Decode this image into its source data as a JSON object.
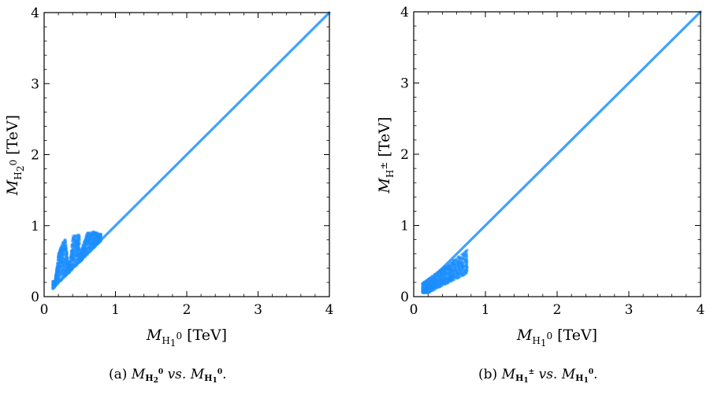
{
  "chart_data": [
    {
      "type": "scatter",
      "id": "a",
      "xlabel": "M_{H_1^0} [TeV]",
      "ylabel": "M_{H_2^0} [TeV]",
      "xlim": [
        0,
        4
      ],
      "ylim": [
        0,
        4
      ],
      "xticks": [
        "0",
        "1",
        "2",
        "3",
        "4"
      ],
      "yticks": [
        "0",
        "1",
        "2",
        "3",
        "4"
      ],
      "grid": false,
      "color": "#1e90ff",
      "diagonal": {
        "from": [
          0.12,
          0.12
        ],
        "to": [
          4.0,
          4.0
        ]
      },
      "cloud": [
        {
          "x": 0.15,
          "y": 0.22
        },
        {
          "x": 0.18,
          "y": 0.45
        },
        {
          "x": 0.2,
          "y": 0.62
        },
        {
          "x": 0.25,
          "y": 0.75
        },
        {
          "x": 0.3,
          "y": 0.82
        },
        {
          "x": 0.4,
          "y": 0.86
        },
        {
          "x": 0.5,
          "y": 0.88
        },
        {
          "x": 0.6,
          "y": 0.9
        },
        {
          "x": 0.7,
          "y": 0.92
        },
        {
          "x": 0.8,
          "y": 0.88
        },
        {
          "x": 0.35,
          "y": 0.4
        },
        {
          "x": 0.5,
          "y": 0.6
        }
      ],
      "caption": {
        "prefix": "(a) ",
        "m1": "M",
        "m1_sub": "H",
        "m1_subsub": "2",
        "m1_sup": "0",
        "vs": " vs. ",
        "m2": "M",
        "m2_sub": "H",
        "m2_subsub": "1",
        "m2_sup": "0",
        "suffix": "."
      }
    },
    {
      "type": "scatter",
      "id": "b",
      "xlabel": "M_{H_1^0} [TeV]",
      "ylabel": "M_{H^±} [TeV]",
      "xlim": [
        0,
        4
      ],
      "ylim": [
        0,
        4
      ],
      "xticks": [
        "0",
        "1",
        "2",
        "3",
        "4"
      ],
      "yticks": [
        "0",
        "1",
        "2",
        "3",
        "4"
      ],
      "grid": false,
      "color": "#1e90ff",
      "diagonal": {
        "from": [
          0.12,
          0.12
        ],
        "to": [
          4.0,
          4.0
        ]
      },
      "cloud": [
        {
          "x": 0.15,
          "y": 0.1
        },
        {
          "x": 0.2,
          "y": 0.3
        },
        {
          "x": 0.25,
          "y": 0.45
        },
        {
          "x": 0.35,
          "y": 0.5
        },
        {
          "x": 0.45,
          "y": 0.55
        },
        {
          "x": 0.6,
          "y": 0.62
        },
        {
          "x": 0.75,
          "y": 0.65
        },
        {
          "x": 0.3,
          "y": 0.15
        },
        {
          "x": 0.5,
          "y": 0.35
        }
      ],
      "caption": {
        "prefix": "(b) ",
        "m1": "M",
        "m1_sub": "H",
        "m1_subsub": "1",
        "m1_sup": "±",
        "vs": " vs. ",
        "m2": "M",
        "m2_sub": "H",
        "m2_subsub": "1",
        "m2_sup": "0",
        "suffix": "."
      }
    }
  ],
  "labels": {
    "a": {
      "y_main": "M",
      "y_sub": "H",
      "y_subsub": "2",
      "y_sup": "0",
      "y_unit": "[TeV]",
      "x_main": "M",
      "x_sub": "H",
      "x_subsub": "1",
      "x_sup": "0",
      "x_unit": "[TeV]"
    },
    "b": {
      "y_main": "M",
      "y_sub": "H",
      "y_sup": "±",
      "y_unit": "[TeV]",
      "x_main": "M",
      "x_sub": "H",
      "x_subsub": "1",
      "x_sup": "0",
      "x_unit": "[TeV]"
    }
  }
}
